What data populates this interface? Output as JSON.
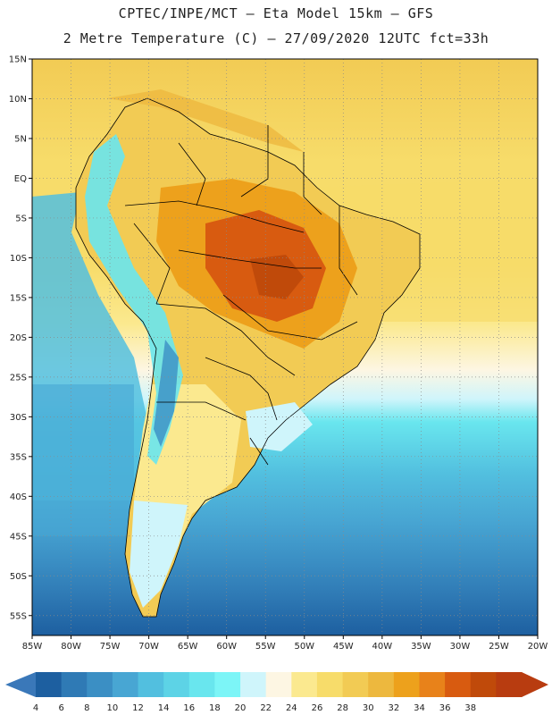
{
  "header": {
    "line1": "CPTEC/INPE/MCT –  Eta Model 15km – GFS",
    "line2": "2 Metre Temperature (C) – 27/09/2020 12UTC fct=33h"
  },
  "map": {
    "lat_labels": [
      "15N",
      "10N",
      "5N",
      "EQ",
      "5S",
      "10S",
      "15S",
      "20S",
      "25S",
      "30S",
      "35S",
      "40S",
      "45S",
      "50S",
      "55S"
    ],
    "lon_labels": [
      "85W",
      "80W",
      "75W",
      "70W",
      "65W",
      "60W",
      "55W",
      "50W",
      "45W",
      "40W",
      "35W",
      "30W",
      "25W",
      "20W"
    ],
    "bounds": {
      "lon_min": -85,
      "lon_max": -20,
      "lat_min": -57.5,
      "lat_max": 15
    }
  },
  "legend": {
    "values": [
      "4",
      "6",
      "8",
      "10",
      "12",
      "14",
      "16",
      "18",
      "20",
      "22",
      "24",
      "26",
      "28",
      "30",
      "32",
      "34",
      "36",
      "38"
    ],
    "colors": [
      "#1d5fa0",
      "#2f7ab5",
      "#3b8fc4",
      "#48a6d3",
      "#52bfdf",
      "#5dd3e6",
      "#69e6ee",
      "#7cf5f7",
      "#cff5fb",
      "#fdf6e3",
      "#fbe98f",
      "#f7dc6a",
      "#f2cb54",
      "#edb83e",
      "#eda11c",
      "#e8821a",
      "#d85b10",
      "#c04a0a",
      "#b83c10"
    ],
    "low_arrow_color": "#3a78b9",
    "high_arrow_color": "#b83c10"
  }
}
